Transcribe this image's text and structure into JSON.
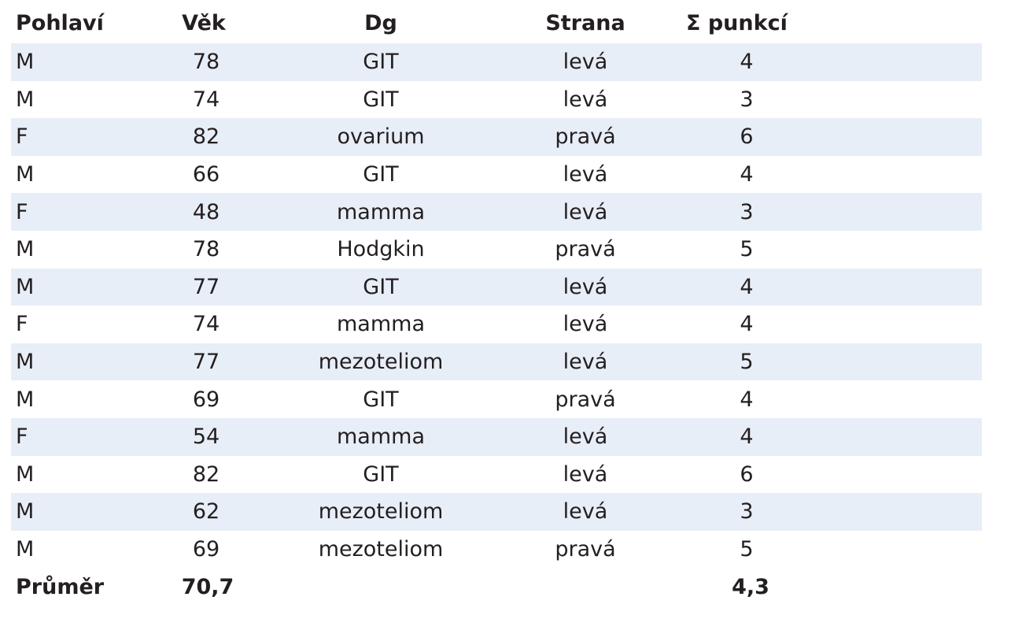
{
  "table": {
    "headers": {
      "sex": "Pohlaví",
      "age": "Věk",
      "dg": "Dg",
      "side": "Strana",
      "count": "Σ punkcí"
    },
    "rows": [
      {
        "sex": "M",
        "age": "78",
        "dg": "GIT",
        "side": "levá",
        "count": "4"
      },
      {
        "sex": "M",
        "age": "74",
        "dg": "GIT",
        "side": "levá",
        "count": "3"
      },
      {
        "sex": "F",
        "age": "82",
        "dg": "ovarium",
        "side": "pravá",
        "count": "6"
      },
      {
        "sex": "M",
        "age": "66",
        "dg": "GIT",
        "side": "levá",
        "count": "4"
      },
      {
        "sex": "F",
        "age": "48",
        "dg": "mamma",
        "side": "levá",
        "count": "3"
      },
      {
        "sex": "M",
        "age": "78",
        "dg": "Hodgkin",
        "side": "pravá",
        "count": "5"
      },
      {
        "sex": "M",
        "age": "77",
        "dg": "GIT",
        "side": "levá",
        "count": "4"
      },
      {
        "sex": "F",
        "age": "74",
        "dg": "mamma",
        "side": "levá",
        "count": "4"
      },
      {
        "sex": "M",
        "age": "77",
        "dg": "mezoteliom",
        "side": "levá",
        "count": "5"
      },
      {
        "sex": "M",
        "age": "69",
        "dg": "GIT",
        "side": "pravá",
        "count": "4"
      },
      {
        "sex": "F",
        "age": "54",
        "dg": "mamma",
        "side": "levá",
        "count": "4"
      },
      {
        "sex": "M",
        "age": "82",
        "dg": "GIT",
        "side": "levá",
        "count": "6"
      },
      {
        "sex": "M",
        "age": "62",
        "dg": "mezoteliom",
        "side": "levá",
        "count": "3"
      },
      {
        "sex": "M",
        "age": "69",
        "dg": "mezoteliom",
        "side": "pravá",
        "count": "5"
      }
    ],
    "footer": {
      "label": "Průměr",
      "age": "70,7",
      "count": "4,3"
    },
    "colors": {
      "shaded_row": "#e8eef8",
      "text": "#231f20"
    }
  }
}
